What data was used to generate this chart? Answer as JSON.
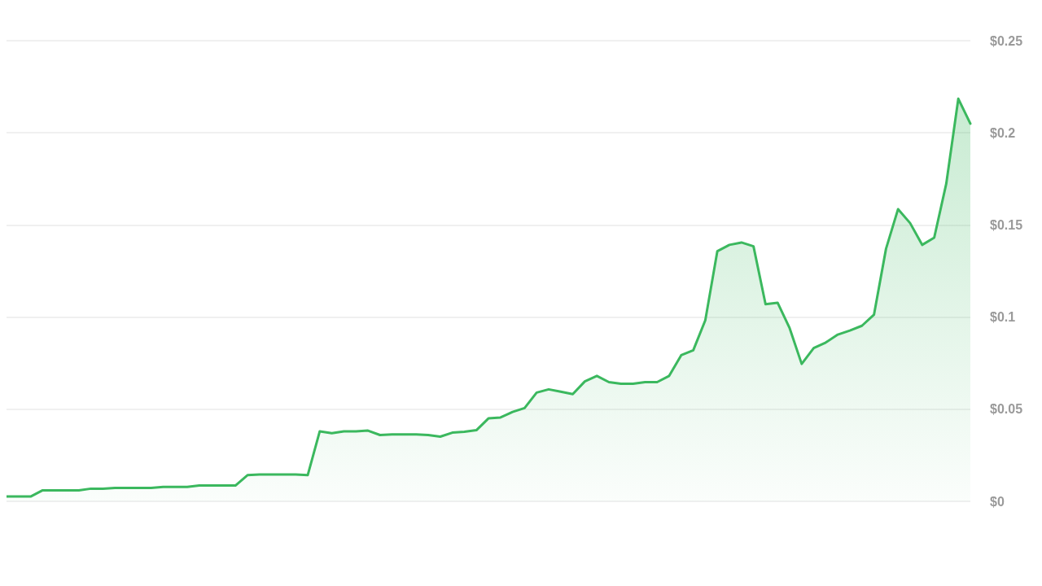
{
  "chart_data": {
    "type": "area",
    "categories": [
      null,
      null,
      null,
      null,
      null,
      null,
      null,
      null,
      null,
      null,
      null,
      null,
      null,
      null,
      null,
      null,
      null,
      null,
      null,
      null,
      null,
      null,
      null,
      null,
      null,
      null,
      null,
      null,
      null,
      null,
      null,
      null,
      null,
      null,
      null,
      null,
      null,
      null,
      null,
      null,
      null,
      null,
      null,
      null,
      null,
      null,
      null,
      null,
      null,
      null,
      null,
      null,
      null,
      null,
      null,
      null,
      null,
      null,
      null,
      null,
      null,
      null,
      null,
      null,
      null,
      null,
      null,
      null,
      null,
      null,
      null,
      null,
      null,
      null,
      null,
      null,
      null,
      null,
      null,
      null,
      null
    ],
    "series": [
      {
        "color": "#3bb85e",
        "values": [
          0.0026,
          0.0026,
          0.0026,
          0.006,
          0.006,
          0.006,
          0.006,
          0.0069,
          0.0069,
          0.0073,
          0.0073,
          0.0073,
          0.0073,
          0.0078,
          0.0078,
          0.0078,
          0.0086,
          0.0086,
          0.0086,
          0.0086,
          0.0142,
          0.0146,
          0.0146,
          0.0146,
          0.0146,
          0.0142,
          0.038,
          0.037,
          0.038,
          0.038,
          0.0384,
          0.036,
          0.0363,
          0.0363,
          0.0363,
          0.036,
          0.0351,
          0.0373,
          0.0378,
          0.0386,
          0.045,
          0.0455,
          0.0485,
          0.0506,
          0.059,
          0.0608,
          0.0595,
          0.0582,
          0.0651,
          0.0681,
          0.0647,
          0.0638,
          0.0638,
          0.0647,
          0.0647,
          0.0681,
          0.0793,
          0.082,
          0.0983,
          0.1358,
          0.1392,
          0.1405,
          0.1384,
          0.107,
          0.1078,
          0.094,
          0.0746,
          0.0832,
          0.0862,
          0.0905,
          0.0927,
          0.0953,
          0.1013,
          0.1371,
          0.1586,
          0.151,
          0.1392,
          0.1431,
          0.1724,
          0.2185,
          0.205
        ]
      }
    ],
    "ylim": [
      0,
      0.25
    ],
    "yticks": [
      {
        "value": 0,
        "label": "$0"
      },
      {
        "value": 0.05,
        "label": "$0.05"
      },
      {
        "value": 0.1,
        "label": "$0.1"
      },
      {
        "value": 0.15,
        "label": "$0.15"
      },
      {
        "value": 0.2,
        "label": "$0.2"
      },
      {
        "value": 0.25,
        "label": "$0.25"
      }
    ],
    "grid": "y",
    "tick_labels": "y",
    "line_style": "solid",
    "marker": "none"
  }
}
